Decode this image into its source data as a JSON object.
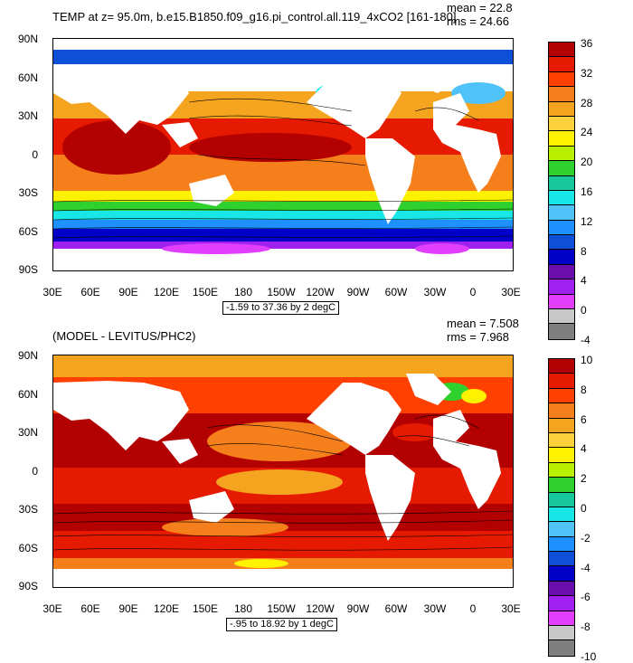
{
  "panel1": {
    "title": "TEMP at z=  95.0m, b.e15.B1850.f09_g16.pi_control.all.119_4xCO2 [161-180]",
    "mean": "mean = 22.8",
    "rms": "rms = 24.66",
    "range": "-1.59 to 37.36 by 2 degC",
    "colorbar_labels": [
      "36",
      "32",
      "28",
      "24",
      "20",
      "16",
      "12",
      "8",
      "4",
      "0",
      "-4"
    ],
    "colors": [
      "#b30000",
      "#e61a00",
      "#ff4000",
      "#f57f1a",
      "#f5a41f",
      "#fbd23c",
      "#fff200",
      "#b8f000",
      "#2fd12e",
      "#16c89c",
      "#19e6e6",
      "#4fc3f7",
      "#1e90ff",
      "#0d4fd6",
      "#0000c8",
      "#6a0dad",
      "#a020f0",
      "#e040fb",
      "#c8c8c8",
      "#7f7f7f"
    ]
  },
  "panel2": {
    "title": "(MODEL - LEVITUS/PHC2)",
    "mean": "mean = 7.508",
    "rms": "rms = 7.968",
    "range": "-.95 to 18.92 by 1 degC",
    "colorbar_labels": [
      "10",
      "8",
      "6",
      "4",
      "2",
      "0",
      "-2",
      "-4",
      "-6",
      "-8",
      "-10"
    ],
    "colors": [
      "#b30000",
      "#e61a00",
      "#ff4000",
      "#f57f1a",
      "#f5a41f",
      "#fbd23c",
      "#fff200",
      "#b8f000",
      "#2fd12e",
      "#16c89c",
      "#19e6e6",
      "#4fc3f7",
      "#1e90ff",
      "#0d4fd6",
      "#0000c8",
      "#6a0dad",
      "#a020f0",
      "#e040fb",
      "#c8c8c8",
      "#7f7f7f"
    ]
  },
  "axes": {
    "lat_labels": [
      "90N",
      "60N",
      "30N",
      "0",
      "30S",
      "60S",
      "90S"
    ],
    "lon_labels": [
      "30E",
      "60E",
      "90E",
      "120E",
      "150E",
      "180",
      "150W",
      "120W",
      "90W",
      "60W",
      "30W",
      "0",
      "30E"
    ]
  }
}
